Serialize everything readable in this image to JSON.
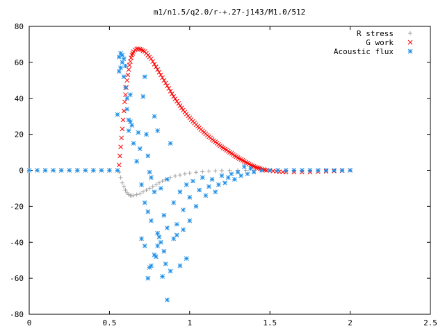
{
  "chart_data": {
    "type": "scatter",
    "title": "m1/n1.5/q2.0/r-+.27-j143/M1.0/512",
    "xlabel": "",
    "ylabel": "",
    "xlim": [
      0,
      2.5
    ],
    "ylim": [
      -80,
      80
    ],
    "x_ticks": [
      {
        "value": 0,
        "label": "0"
      },
      {
        "value": 0.5,
        "label": "0.5"
      },
      {
        "value": 1,
        "label": "1"
      },
      {
        "value": 1.5,
        "label": "1.5"
      },
      {
        "value": 2,
        "label": "2"
      },
      {
        "value": 2.5,
        "label": "2.5"
      }
    ],
    "y_ticks": [
      {
        "value": -80,
        "label": "-80"
      },
      {
        "value": -60,
        "label": "-60"
      },
      {
        "value": -40,
        "label": "-40"
      },
      {
        "value": -20,
        "label": "-20"
      },
      {
        "value": 0,
        "label": "0"
      },
      {
        "value": 20,
        "label": "20"
      },
      {
        "value": 40,
        "label": "40"
      },
      {
        "value": 60,
        "label": "60"
      },
      {
        "value": 80,
        "label": "80"
      }
    ],
    "grid": false,
    "legend_position": "top-right",
    "series": [
      {
        "name": "R stress",
        "marker": "plus",
        "color": "#a0a0a0",
        "points": [
          [
            0.0,
            0
          ],
          [
            0.05,
            0
          ],
          [
            0.1,
            0
          ],
          [
            0.15,
            0
          ],
          [
            0.2,
            0
          ],
          [
            0.25,
            0
          ],
          [
            0.3,
            0
          ],
          [
            0.35,
            0
          ],
          [
            0.4,
            0
          ],
          [
            0.45,
            0
          ],
          [
            0.5,
            0
          ],
          [
            0.55,
            0
          ],
          [
            0.56,
            -1
          ],
          [
            0.57,
            -4
          ],
          [
            0.58,
            -7
          ],
          [
            0.59,
            -9
          ],
          [
            0.6,
            -11
          ],
          [
            0.61,
            -12.5
          ],
          [
            0.62,
            -13.5
          ],
          [
            0.63,
            -14
          ],
          [
            0.64,
            -14
          ],
          [
            0.65,
            -14
          ],
          [
            0.67,
            -13.5
          ],
          [
            0.69,
            -13
          ],
          [
            0.71,
            -12
          ],
          [
            0.73,
            -11
          ],
          [
            0.75,
            -10
          ],
          [
            0.77,
            -9
          ],
          [
            0.79,
            -8
          ],
          [
            0.81,
            -7
          ],
          [
            0.83,
            -6
          ],
          [
            0.85,
            -5
          ],
          [
            0.88,
            -4
          ],
          [
            0.91,
            -3.2
          ],
          [
            0.94,
            -2.6
          ],
          [
            0.97,
            -2
          ],
          [
            1.0,
            -1.5
          ],
          [
            1.04,
            -1.1
          ],
          [
            1.08,
            -0.8
          ],
          [
            1.12,
            -0.5
          ],
          [
            1.16,
            -0.3
          ],
          [
            1.2,
            -0.2
          ],
          [
            1.25,
            -0.1
          ],
          [
            1.3,
            0
          ],
          [
            1.35,
            0
          ],
          [
            1.4,
            0
          ],
          [
            1.45,
            0
          ],
          [
            1.5,
            0
          ],
          [
            1.55,
            0
          ],
          [
            1.6,
            0
          ],
          [
            1.65,
            0
          ],
          [
            1.7,
            0
          ],
          [
            1.75,
            0
          ],
          [
            1.8,
            0
          ],
          [
            1.85,
            0
          ],
          [
            1.9,
            0
          ],
          [
            1.95,
            0
          ],
          [
            2.0,
            0
          ]
        ]
      },
      {
        "name": "G work",
        "marker": "cross",
        "color": "#ff0000",
        "points": [
          [
            0.56,
            3
          ],
          [
            0.565,
            8
          ],
          [
            0.57,
            13
          ],
          [
            0.575,
            18
          ],
          [
            0.58,
            23
          ],
          [
            0.585,
            28
          ],
          [
            0.59,
            33
          ],
          [
            0.595,
            38
          ],
          [
            0.6,
            42
          ],
          [
            0.605,
            46
          ],
          [
            0.61,
            50
          ],
          [
            0.615,
            53
          ],
          [
            0.62,
            56
          ],
          [
            0.625,
            58.5
          ],
          [
            0.63,
            60.5
          ],
          [
            0.635,
            62.5
          ],
          [
            0.64,
            64
          ],
          [
            0.645,
            65
          ],
          [
            0.65,
            66
          ],
          [
            0.66,
            67
          ],
          [
            0.67,
            67.5
          ],
          [
            0.68,
            67.5
          ],
          [
            0.69,
            67.3
          ],
          [
            0.7,
            67
          ],
          [
            0.71,
            66.5
          ],
          [
            0.72,
            66
          ],
          [
            0.73,
            65
          ],
          [
            0.74,
            64
          ],
          [
            0.75,
            63
          ],
          [
            0.76,
            62
          ],
          [
            0.77,
            60.5
          ],
          [
            0.78,
            59
          ],
          [
            0.79,
            57.5
          ],
          [
            0.8,
            56
          ],
          [
            0.81,
            54.5
          ],
          [
            0.82,
            53
          ],
          [
            0.83,
            51.5
          ],
          [
            0.84,
            50
          ],
          [
            0.85,
            48.5
          ],
          [
            0.86,
            47
          ],
          [
            0.87,
            45.5
          ],
          [
            0.88,
            44
          ],
          [
            0.89,
            42.5
          ],
          [
            0.9,
            41
          ],
          [
            0.91,
            39.7
          ],
          [
            0.92,
            38.4
          ],
          [
            0.93,
            37.1
          ],
          [
            0.94,
            35.9
          ],
          [
            0.95,
            34.7
          ],
          [
            0.96,
            33.5
          ],
          [
            0.97,
            32.4
          ],
          [
            0.98,
            31.3
          ],
          [
            0.99,
            30.2
          ],
          [
            1.0,
            29.2
          ],
          [
            1.01,
            28.2
          ],
          [
            1.02,
            27.2
          ],
          [
            1.03,
            26.3
          ],
          [
            1.04,
            25.4
          ],
          [
            1.05,
            24.5
          ],
          [
            1.06,
            23.6
          ],
          [
            1.07,
            22.7
          ],
          [
            1.08,
            21.9
          ],
          [
            1.09,
            21.1
          ],
          [
            1.1,
            20.3
          ],
          [
            1.11,
            19.5
          ],
          [
            1.12,
            18.7
          ],
          [
            1.13,
            18
          ],
          [
            1.14,
            17.2
          ],
          [
            1.15,
            16.5
          ],
          [
            1.16,
            15.8
          ],
          [
            1.17,
            15.1
          ],
          [
            1.18,
            14.4
          ],
          [
            1.19,
            13.7
          ],
          [
            1.2,
            13
          ],
          [
            1.21,
            12.4
          ],
          [
            1.22,
            11.8
          ],
          [
            1.23,
            11.2
          ],
          [
            1.24,
            10.6
          ],
          [
            1.25,
            10
          ],
          [
            1.26,
            9.4
          ],
          [
            1.27,
            8.8
          ],
          [
            1.28,
            8.2
          ],
          [
            1.29,
            7.6
          ],
          [
            1.3,
            7
          ],
          [
            1.31,
            6.5
          ],
          [
            1.32,
            6
          ],
          [
            1.33,
            5.5
          ],
          [
            1.34,
            5
          ],
          [
            1.35,
            4.5
          ],
          [
            1.36,
            4
          ],
          [
            1.37,
            3.5
          ],
          [
            1.38,
            3
          ],
          [
            1.39,
            2.6
          ],
          [
            1.4,
            2.2
          ],
          [
            1.41,
            1.8
          ],
          [
            1.42,
            1.5
          ],
          [
            1.43,
            1.2
          ],
          [
            1.44,
            0.9
          ],
          [
            1.45,
            0.6
          ],
          [
            1.46,
            0.4
          ],
          [
            1.47,
            0.2
          ],
          [
            1.48,
            0
          ],
          [
            1.5,
            -0.2
          ],
          [
            1.52,
            -0.4
          ],
          [
            1.54,
            -0.6
          ],
          [
            1.56,
            -0.8
          ],
          [
            1.58,
            -0.9
          ],
          [
            1.6,
            -1
          ],
          [
            1.65,
            -1
          ],
          [
            1.7,
            -1
          ],
          [
            1.75,
            -1
          ],
          [
            1.8,
            -0.8
          ],
          [
            1.85,
            -0.6
          ],
          [
            1.9,
            -0.4
          ],
          [
            1.95,
            -0.2
          ],
          [
            2.0,
            0
          ]
        ]
      },
      {
        "name": "Acoustic flux",
        "marker": "star",
        "color": "#1f8fe8",
        "points": [
          [
            0.0,
            0
          ],
          [
            0.05,
            0
          ],
          [
            0.1,
            0
          ],
          [
            0.15,
            0
          ],
          [
            0.2,
            0
          ],
          [
            0.25,
            0
          ],
          [
            0.3,
            0
          ],
          [
            0.35,
            0
          ],
          [
            0.4,
            0
          ],
          [
            0.45,
            0
          ],
          [
            0.5,
            0
          ],
          [
            0.55,
            0
          ],
          [
            0.55,
            31
          ],
          [
            0.56,
            55
          ],
          [
            0.56,
            63
          ],
          [
            0.57,
            57
          ],
          [
            0.57,
            65
          ],
          [
            0.58,
            60
          ],
          [
            0.58,
            64
          ],
          [
            0.59,
            52
          ],
          [
            0.59,
            62
          ],
          [
            0.6,
            58
          ],
          [
            0.6,
            46
          ],
          [
            0.61,
            40
          ],
          [
            0.61,
            34
          ],
          [
            0.62,
            28
          ],
          [
            0.62,
            22
          ],
          [
            0.63,
            27
          ],
          [
            0.63,
            42
          ],
          [
            0.64,
            25
          ],
          [
            0.65,
            15
          ],
          [
            0.67,
            5
          ],
          [
            0.68,
            21
          ],
          [
            0.69,
            12
          ],
          [
            0.7,
            -8
          ],
          [
            0.71,
            41
          ],
          [
            0.72,
            52
          ],
          [
            0.73,
            20
          ],
          [
            0.74,
            8
          ],
          [
            0.75,
            -1
          ],
          [
            0.76,
            -4
          ],
          [
            0.78,
            30
          ],
          [
            0.8,
            22
          ],
          [
            0.82,
            -10
          ],
          [
            0.84,
            -25
          ],
          [
            0.86,
            -5
          ],
          [
            0.88,
            15
          ],
          [
            0.9,
            -18
          ],
          [
            0.92,
            -30
          ],
          [
            0.94,
            -12
          ],
          [
            0.96,
            -22
          ],
          [
            0.98,
            -8
          ],
          [
            1.0,
            -15
          ],
          [
            1.02,
            -6
          ],
          [
            1.04,
            -20
          ],
          [
            1.06,
            -11
          ],
          [
            1.08,
            -4
          ],
          [
            1.1,
            -14
          ],
          [
            1.12,
            -9
          ],
          [
            1.14,
            -5
          ],
          [
            1.16,
            -12
          ],
          [
            1.18,
            -8
          ],
          [
            1.2,
            -3
          ],
          [
            1.22,
            -7
          ],
          [
            1.24,
            -4
          ],
          [
            1.26,
            -2
          ],
          [
            1.28,
            -5
          ],
          [
            1.3,
            -1
          ],
          [
            1.32,
            -3
          ],
          [
            1.34,
            2
          ],
          [
            1.36,
            -2
          ],
          [
            1.38,
            1
          ],
          [
            1.4,
            -1
          ],
          [
            1.45,
            0
          ],
          [
            1.5,
            0
          ],
          [
            1.55,
            0
          ],
          [
            1.6,
            0
          ],
          [
            1.65,
            0
          ],
          [
            1.7,
            0
          ],
          [
            1.75,
            0
          ],
          [
            1.8,
            0
          ],
          [
            1.85,
            0
          ],
          [
            1.9,
            0
          ],
          [
            1.95,
            0
          ],
          [
            2.0,
            0
          ],
          [
            0.7,
            -38
          ],
          [
            0.72,
            -42
          ],
          [
            0.74,
            -60
          ],
          [
            0.75,
            -54
          ],
          [
            0.76,
            -53
          ],
          [
            0.78,
            -47
          ],
          [
            0.79,
            -48
          ],
          [
            0.8,
            -35
          ],
          [
            0.81,
            -37
          ],
          [
            0.82,
            -40
          ],
          [
            0.83,
            -59
          ],
          [
            0.85,
            -52
          ],
          [
            0.86,
            -72
          ],
          [
            0.88,
            -56
          ],
          [
            0.9,
            -38
          ],
          [
            0.72,
            -18
          ],
          [
            0.74,
            -23
          ],
          [
            0.76,
            -28
          ],
          [
            0.78,
            -12
          ],
          [
            0.8,
            -42
          ],
          [
            0.84,
            -45
          ],
          [
            0.86,
            -32
          ],
          [
            0.92,
            -36
          ],
          [
            0.94,
            -53
          ],
          [
            0.98,
            -49
          ],
          [
            1.0,
            -28
          ],
          [
            0.96,
            -33
          ]
        ]
      }
    ]
  }
}
